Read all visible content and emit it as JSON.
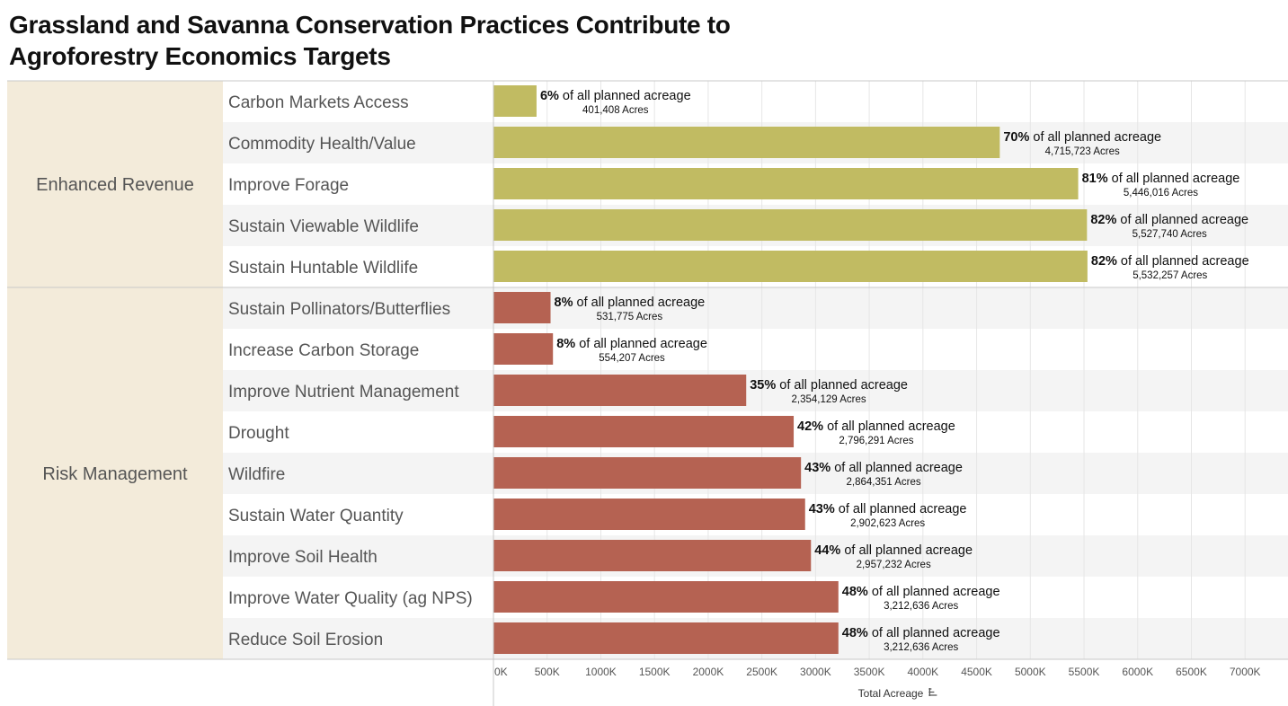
{
  "title_line1": "Grassland and Savanna Conservation Practices Contribute to",
  "title_line2": "Agroforestry Economics Targets",
  "chart_data": {
    "type": "bar",
    "orientation": "horizontal",
    "x_axis_label": "Total Acreage",
    "xlim": [
      0,
      7400000
    ],
    "x_ticks": [
      0,
      500000,
      1000000,
      1500000,
      2000000,
      2500000,
      3000000,
      3500000,
      4000000,
      4500000,
      5000000,
      5500000,
      6000000,
      6500000,
      7000000
    ],
    "x_tick_labels": [
      "0K",
      "500K",
      "1000K",
      "1500K",
      "2000K",
      "2500K",
      "3000K",
      "3500K",
      "4000K",
      "4500K",
      "5000K",
      "5500K",
      "6000K",
      "6500K",
      "7000K"
    ],
    "percent_suffix": "of all planned acreage",
    "acres_suffix": "Acres",
    "grid": true,
    "groups": [
      {
        "name": "Enhanced Revenue",
        "color": "#c1bb62",
        "items": [
          {
            "label": "Carbon Markets Access",
            "value": 401408,
            "value_label": "401,408",
            "percent": "6%"
          },
          {
            "label": "Commodity Health/Value",
            "value": 4715723,
            "value_label": "4,715,723",
            "percent": "70%"
          },
          {
            "label": "Improve Forage",
            "value": 5446016,
            "value_label": "5,446,016",
            "percent": "81%"
          },
          {
            "label": "Sustain Viewable Wildlife",
            "value": 5527740,
            "value_label": "5,527,740",
            "percent": "82%"
          },
          {
            "label": "Sustain Huntable Wildlife",
            "value": 5532257,
            "value_label": "5,532,257",
            "percent": "82%"
          }
        ]
      },
      {
        "name": "Risk Management",
        "color": "#b56252",
        "items": [
          {
            "label": "Sustain Pollinators/Butterflies",
            "value": 531775,
            "value_label": "531,775",
            "percent": "8%"
          },
          {
            "label": "Increase Carbon Storage",
            "value": 554207,
            "value_label": "554,207",
            "percent": "8%"
          },
          {
            "label": " Improve Nutrient Management",
            "value": 2354129,
            "value_label": "2,354,129",
            "percent": "35%"
          },
          {
            "label": "Drought",
            "value": 2796291,
            "value_label": "2,796,291",
            "percent": "42%"
          },
          {
            "label": "Wildfire",
            "value": 2864351,
            "value_label": "2,864,351",
            "percent": "43%"
          },
          {
            "label": "Sustain Water Quantity",
            "value": 2902623,
            "value_label": "2,902,623",
            "percent": "43%"
          },
          {
            "label": "Improve Soil Health",
            "value": 2957232,
            "value_label": "2,957,232",
            "percent": "44%"
          },
          {
            "label": " Improve Water Quality (ag NPS)",
            "value": 3212636,
            "value_label": "3,212,636",
            "percent": "48%"
          },
          {
            "label": "Reduce Soil Erosion",
            "value": 3212636,
            "value_label": "3,212,636",
            "percent": "48%"
          }
        ]
      }
    ]
  },
  "colors": {
    "group_band": "#f3ebda",
    "row_alt": "#f4f4f4",
    "grid": "#e6e6e6",
    "divider": "#c8c8c8"
  },
  "icons": {
    "sort": "sort-icon"
  }
}
